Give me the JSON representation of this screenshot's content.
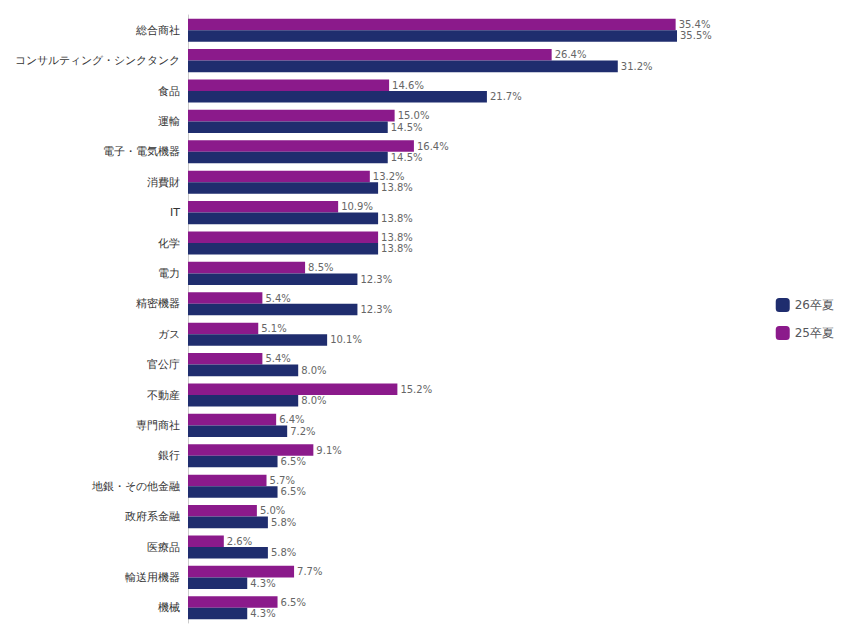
{
  "chart_data": {
    "type": "bar",
    "orientation": "horizontal",
    "categories": [
      "機械",
      "輸送用機器",
      "医療品",
      "政府系金融",
      "地銀・その他金融",
      "銀行",
      "専門商社",
      "不動産",
      "官公庁",
      "ガス",
      "精密機器",
      "電力",
      "化学",
      "IT",
      "消費財",
      "電子・電気機器",
      "運輸",
      "食品",
      "コンサルティング・シンクタンク",
      "総合商社"
    ],
    "series": [
      {
        "name": "26卒夏",
        "color": "#1f2d6e",
        "values": [
          4.3,
          4.3,
          5.8,
          5.8,
          6.5,
          6.5,
          7.2,
          8.0,
          8.0,
          10.1,
          12.3,
          12.3,
          13.8,
          13.8,
          13.8,
          14.5,
          14.5,
          21.7,
          31.2,
          35.5
        ],
        "value_labels": [
          "4.3%",
          "4.3%",
          "5.8%",
          "5.8%",
          "6.5%",
          "6.5%",
          "7.2%",
          "8.0%",
          "8.0%",
          "10.1%",
          "12.3%",
          "12.3%",
          "13.8%",
          "13.8%",
          "13.8%",
          "14.5%",
          "14.5%",
          "21.7%",
          "31.2%",
          "35.5%"
        ]
      },
      {
        "name": "25卒夏",
        "color": "#8b1a8b",
        "values": [
          6.5,
          7.7,
          2.6,
          5.0,
          5.7,
          9.1,
          6.4,
          15.2,
          5.4,
          5.1,
          5.4,
          8.5,
          13.8,
          10.9,
          13.2,
          16.4,
          15.0,
          14.6,
          26.4,
          35.4
        ],
        "value_labels": [
          "6.5%",
          "7.7%",
          "2.6%",
          "5.0%",
          "5.7%",
          "9.1%",
          "6.4%",
          "15.2%",
          "5.4%",
          "5.1%",
          "5.4%",
          "8.5%",
          "13.8%",
          "10.9%",
          "13.2%",
          "16.4%",
          "15.0%",
          "14.6%",
          "26.4%",
          "35.4%"
        ]
      }
    ],
    "xlim": [
      0,
      40
    ],
    "data_labels": true,
    "tick_labels": "y",
    "grid": false,
    "legend": "right"
  }
}
